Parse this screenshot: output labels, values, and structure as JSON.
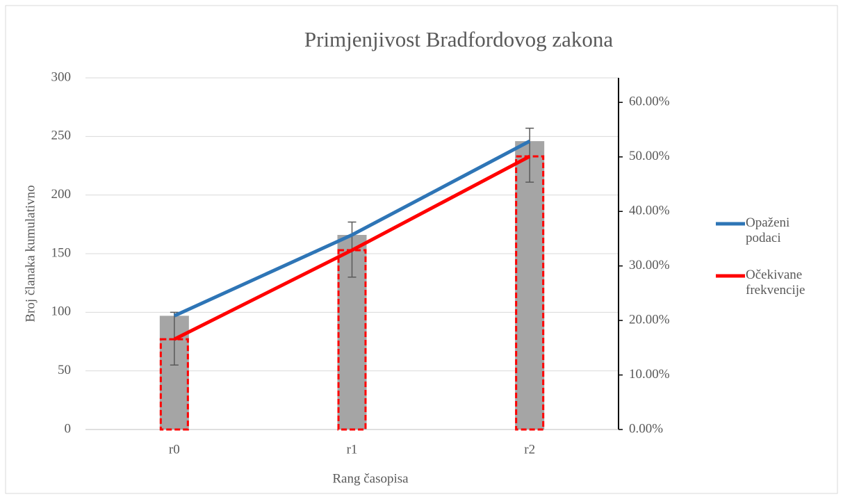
{
  "chart_data": {
    "type": "combo",
    "title": "Primjenjivost Bradfordovog zakona",
    "x_label": "Rang časopisa",
    "y_label": "Broj članaka kumulativno",
    "categories": [
      "r0",
      "r1",
      "r2"
    ],
    "ylim": [
      0,
      300
    ],
    "yticks": [
      0,
      50,
      100,
      150,
      200,
      250,
      300
    ],
    "y2lim": [
      0,
      64.5
    ],
    "y2ticks": [
      {
        "value": 0,
        "label": "0.00%"
      },
      {
        "value": 10,
        "label": "10.00%"
      },
      {
        "value": 20,
        "label": "20.00%"
      },
      {
        "value": 30,
        "label": "30.00%"
      },
      {
        "value": 40,
        "label": "40.00%"
      },
      {
        "value": 50,
        "label": "50.00%"
      },
      {
        "value": 60,
        "label": "60.00%"
      }
    ],
    "grid": true,
    "legend": "right",
    "series": [
      {
        "type": "bar",
        "color": "#a5a5a5",
        "values": [
          97,
          166,
          246
        ],
        "error_minus": [
          42,
          36,
          35
        ],
        "error_plus": [
          3,
          11,
          11
        ]
      },
      {
        "type": "bar",
        "color": "#ff0000",
        "style": "dashed",
        "values": [
          77,
          153,
          233
        ]
      },
      {
        "type": "line",
        "name": "Opaženi podaci",
        "color": "#2e75b6",
        "values": [
          97,
          166,
          246
        ]
      },
      {
        "type": "line",
        "name": "Očekivane frekvencije",
        "color": "#ff0000",
        "values": [
          77,
          153,
          233
        ]
      }
    ]
  }
}
